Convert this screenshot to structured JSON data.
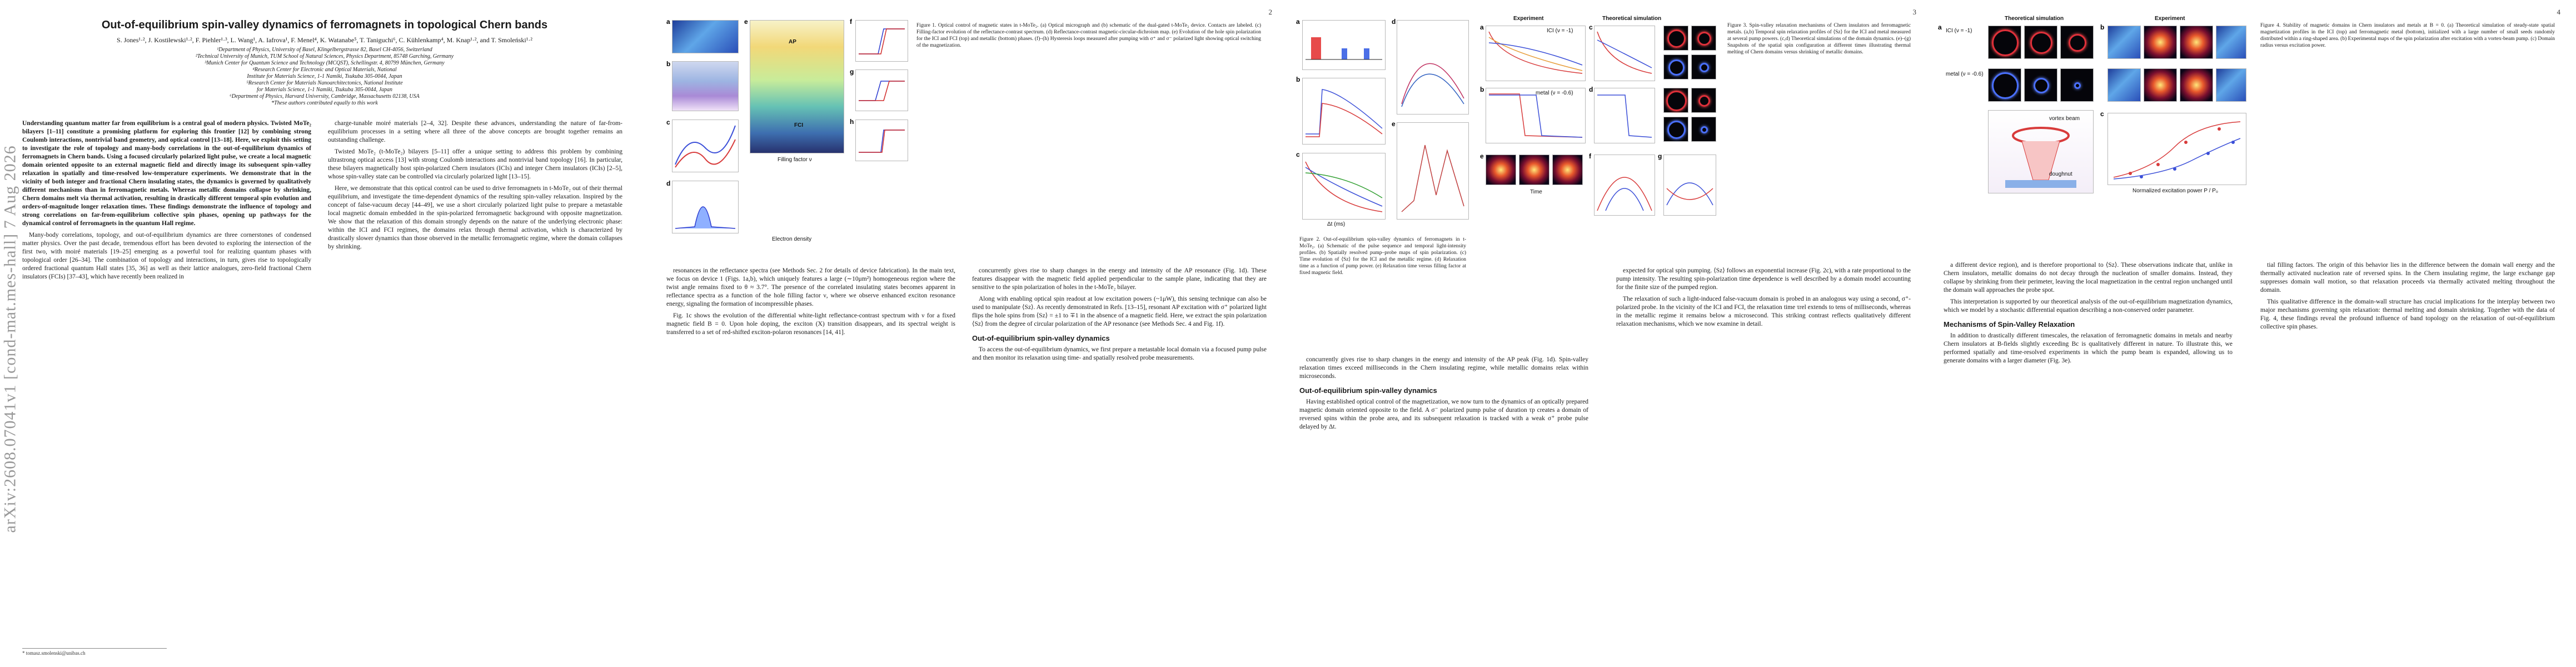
{
  "pages": [
    {
      "number": ""
    },
    {
      "number": "2"
    },
    {
      "number": "3"
    },
    {
      "number": "4"
    }
  ],
  "arxiv_stamp": "arXiv:2608.07041v1  [cond-mat.mes-hall]  7 Aug 2026",
  "header": {
    "title": "Out-of-equilibrium spin-valley dynamics of ferromagnets in topological Chern bands",
    "authors": "S. Jones¹·², J. Kostiłewski¹·², F. Piehler¹·³, L. Wang¹, A. Iafrova¹, F. Menel⁴, K. Watanabe⁵, T. Taniguchi⁶, C. Kühlenkamp⁴, M. Knap¹·², and T. Smoleński¹·²",
    "affiliations": [
      "¹Department of Physics, University of Basel, Klingelbergstrasse 82, Basel CH-4056, Switzerland",
      "²Technical University of Munich, TUM School of Natural Sciences, Physics Department, 85748 Garching, Germany",
      "³Munich Center for Quantum Science and Technology (MCQST), Schellingstr. 4, 80799 München, Germany",
      "⁴Research Center for Electronic and Optical Materials, National",
      "Institute for Materials Science, 1-1 Namiki, Tsukuba 305-0044, Japan",
      "⁵Research Center for Materials Nanoarchitectonics, National Institute",
      "for Materials Science, 1-1 Namiki, Tsukuba 305-0044, Japan",
      "⁶Department of Physics, Harvard University, Cambridge, Massachusetts 02138, USA",
      "*These authors contributed equally to this work"
    ]
  },
  "page1": {
    "abstract": "Understanding quantum matter far from equilibrium is a central goal of modern physics. Twisted MoTe₂ bilayers [1–11] constitute a promising platform for exploring this frontier [12] by combining strong Coulomb interactions, nontrivial band geometry, and optical control [13–18]. Here, we exploit this setting to investigate the role of topology and many-body correlations in the out-of-equilibrium dynamics of ferromagnets in Chern bands. Using a focused circularly polarized light pulse, we create a local magnetic domain oriented opposite to an external magnetic field and directly image its subsequent spin-valley relaxation in spatially and time-resolved low-temperature experiments. We demonstrate that in the vicinity of both integer and fractional Chern insulating states, the dynamics is governed by qualitatively different mechanisms than in ferromagnetic metals. Whereas metallic domains collapse by shrinking, Chern domains melt via thermal activation, resulting in drastically different temporal spin evolution and orders-of-magnitude longer relaxation times. These findings demonstrate the influence of topology and strong correlations on far-from-equilibrium collective spin phases, opening up pathways for the dynamical control of ferromagnets in the quantum Hall regime.",
    "body_left": [
      "Many-body correlations, topology, and out-of-equilibrium dynamics are three cornerstones of condensed matter physics. Over the past decade, tremendous effort has been devoted to exploring the intersection of the first two, with moiré materials [19–25] emerging as a powerful tool for realizing quantum phases with topological order [26–34]. The combination of topology and interactions, in turn, gives rise to topologically ordered fractional quantum Hall states [35, 36] as well as their lattice analogues, zero-field fractional Chern insulators (FCIs) [37–43], which have recently been realized in"
    ],
    "body_right": [
      "charge-tunable moiré materials [2–4, 32]. Despite these advances, understanding the nature of far-from-equilibrium processes in a setting where all three of the above concepts are brought together remains an outstanding challenge.",
      "Twisted MoTe₂ (t-MoTe₂) bilayers [5–11] offer a unique setting to address this problem by combining ultrastrong optical access [13] with strong Coulomb interactions and nontrivial band topology [16]. In particular, these bilayers magnetically host spin-polarized Chern insulators (ICIs) and integer Chern insulators (ICIs) [2–5], whose spin-valley state can be controlled via circularly polarized light [13–15].",
      "Here, we demonstrate that this optical control can be used to drive ferromagnets in t-MoTe₂ out of their thermal equilibrium, and investigate the time-dependent dynamics of the resulting spin-valley relaxation. Inspired by the concept of false-vacuum decay [44–49], we use a short circularly polarized light pulse to prepare a metastable local magnetic domain embedded in the spin-polarized ferromagnetic background with opposite magnetization. We show that the relaxation of this domain strongly depends on the nature of the underlying electronic phase: within the ICI and FCI regimes, the domains relax through thermal activation, which is characterized by drastically slower dynamics than those observed in the metallic ferromagnetic regime, where the domain collapses by shrinking."
    ],
    "footnote": "* tomasz.smolenski@unibas.ch"
  },
  "page2": {
    "caption": "Figure 1. Optical control of magnetic states in t-MoTe₂. (a) Optical micrograph and (b) schematic of the dual-gated t-MoTe₂ device. Contacts are labeled. (c) Filling-factor evolution of the reflectance-contrast spectrum. (d) Reflectance-contrast magnetic-circular-dichroism map. (e) Evolution of the hole spin polarization for the ICI and FCI (top) and metallic (bottom) phases. (f)–(h) Hysteresis loops measured after pumping with σ⁺ and σ⁻ polarized light showing optical switching of the magnetization.",
    "body_left": [
      "resonances in the reflectance spectra (see Methods Sec. 2 for details of device fabrication). In the main text, we focus on device 1 (Figs. 1a,b), which uniquely features a large (∼10μm²) homogeneous region where the twist angle remains fixed to θ ≈ 3.7°. The presence of the correlated insulating states becomes apparent in reflectance spectra as a function of the hole filling factor ν, where we observe enhanced exciton resonance energy, signaling the formation of incompressible phases.",
      "Fig. 1c shows the evolution of the differential white-light reflectance-contrast spectrum with ν for a fixed magnetic field B = 0. Upon hole doping, the exciton (X) transition disappears, and its spectral weight is transferred to a set of red-shifted exciton-polaron resonances [14, 41]."
    ],
    "body_right": [
      "concurrently gives rise to sharp changes in the energy and intensity of the AP resonance (Fig. 1d). These features disappear with the magnetic field applied perpendicular to the sample plane, indicating that they are sensitive to the spin polarization of holes in the t-MoTe₂ bilayer.",
      "Along with enabling optical spin readout at low excitation powers (~1μW), this sensing technique can also be used to manipulate ⟨Sz⟩. As recently demonstrated in Refs. [13–15], resonant AP excitation with σ⁺ polarized light flips the hole spins from ⟨Sz⟩ = ±1 to ∓1 in the absence of a magnetic field. Here, we extract the spin polarization ⟨Sz⟩ from the degree of circular polarization of the AP resonance (see Methods Sec. 4 and Fig. 1f).",
      "Out-of-equilibrium spin-valley dynamics",
      "To access the out-of-equilibrium dynamics, we first prepare a metastable local domain via a focused pump pulse and then monitor its relaxation using time- and spatially resolved probe measurements."
    ]
  },
  "page3": {
    "caption_fig2": "Figure 2. Out-of-equilibrium spin-valley dynamics of ferromagnets in t-MoTe₂. (a) Schematic of the pulse sequence and temporal light-intensity profiles. (b) Spatially resolved pump–probe maps of spin polarization. (c) Time evolution of ⟨Sz⟩ for the ICI and the metallic regime. (d) Relaxation time as a function of pump power. (e) Relaxation time versus filling factor at fixed magnetic field.",
    "caption_fig3": "Figure 3. Spin-valley relaxation mechanisms of Chern insulators and ferromagnetic metals. (a,b) Temporal spin relaxation profiles of ⟨Sz⟩ for the ICI and metal measured at several pump powers. (c,d) Theoretical simulations of the domain dynamics. (e)–(g) Snapshots of the spatial spin configuration at different times illustrating thermal melting of Chern domains versus shrinking of metallic domains.",
    "body_left": [
      "concurrently gives rise to sharp changes in the energy and intensity of the AP peak (Fig. 1d). Spin-valley relaxation times exceed milliseconds in the Chern insulating regime, while metallic domains relax within microseconds.",
      "Out-of-equilibrium spin-valley dynamics",
      "Having established optical control of the magnetization, we now turn to the dynamics of an optically prepared magnetic domain oriented opposite to the field. A σ⁻ polarized pump pulse of duration τp creates a domain of reversed spins within the probe area, and its subsequent relaxation is tracked with a weak σ⁺ probe pulse delayed by Δt."
    ],
    "body_right": [
      "expected for optical spin pumping. ⟨Sz⟩ follows an exponential increase (Fig. 2c), with a rate proportional to the pump intensity. The resulting spin-polarization time dependence is well described by a domain model accounting for the finite size of the pumped region.",
      "The relaxation of such a light-induced false-vacuum domain is probed in an analogous way using a second, σ⁺-polarized probe. In the vicinity of the ICI and FCI, the relaxation time τrel extends to tens of milliseconds, whereas in the metallic regime it remains below a microsecond. This striking contrast reflects qualitatively different relaxation mechanisms, which we now examine in detail."
    ]
  },
  "page4": {
    "panel_titles": {
      "theory": "Theoretical simulation",
      "experiment": "Experiment"
    },
    "caption": "Figure 4. Stability of magnetic domains in Chern insulators and metals at B = 0. (a) Theoretical simulation of steady-state spatial magnetization profiles in the ICI (top) and ferromagnetic metal (bottom), initialized with a large number of small seeds randomly distributed within a ring-shaped area. (b) Experimental maps of the spin polarization after excitation with a vortex-beam pump. (c) Domain radius versus excitation power.",
    "body_left": [
      "a different device region), and is therefore proportional to ⟨Sz⟩. These observations indicate that, unlike in Chern insulators, metallic domains do not decay through the nucleation of smaller domains. Instead, they collapse by shrinking from their perimeter, leaving the local magnetization in the central region unchanged until the domain wall approaches the probe spot.",
      "This interpretation is supported by our theoretical analysis of the out-of-equilibrium magnetization dynamics, which we model by a stochastic differential equation describing a non-conserved order parameter.",
      "Mechanisms of Spin-Valley Relaxation",
      "In addition to drastically different timescales, the relaxation of ferromagnetic domains in metals and nearby Chern insulators at B-fields slightly exceeding Bc is qualitatively different in nature. To illustrate this, we performed spatially and time-resolved experiments in which the pump beam is expanded, allowing us to generate domains with a larger diameter (Fig. 3e)."
    ],
    "body_right": [
      "tial filling factors. The origin of this behavior lies in the difference between the domain wall energy and the thermally activated nucleation rate of reversed spins. In the Chern insulating regime, the large exchange gap suppresses domain wall motion, so that relaxation proceeds via thermally activated melting throughout the domain.",
      "This qualitative difference in the domain-wall structure has crucial implications for the interplay between two major mechanisms governing spin relaxation: thermal melting and domain shrinking. Together with the data of Fig. 4, these findings reveal the profound influence of band topology on the relaxation of out-of-equilibrium collective spin phases."
    ]
  },
  "figure_labels": {
    "fig1": [
      "a",
      "b",
      "c",
      "d",
      "e",
      "f",
      "g",
      "h"
    ],
    "fig2": [
      "a",
      "b",
      "c",
      "d",
      "e"
    ],
    "fig3": [
      "a",
      "b",
      "c",
      "d",
      "e",
      "f",
      "g"
    ],
    "fig4": [
      "a",
      "b",
      "c"
    ]
  },
  "figure_text": {
    "fig1_e_top": "AP",
    "fig1_e_bot": "FCI",
    "fig1_c_axis": "Filling factor ν",
    "fig1_d_axis": "Electron density",
    "fig2_dt": "Δt (ms)",
    "fig3_expt": "Experiment",
    "fig3_theory": "Theoretical simulation",
    "fig3_time": "Time",
    "fig3_fci": "ICI (ν = -1)",
    "fig3_metal": "metal (ν = -0.6)",
    "fig4_power": "Normalized excitation power P / P₀",
    "fig4_ici": "ICI (ν = -1)",
    "fig4_metal": "metal (ν = -0.6)",
    "fig4_vortex": "vortex beam",
    "fig4_doughnut": "doughnut"
  }
}
